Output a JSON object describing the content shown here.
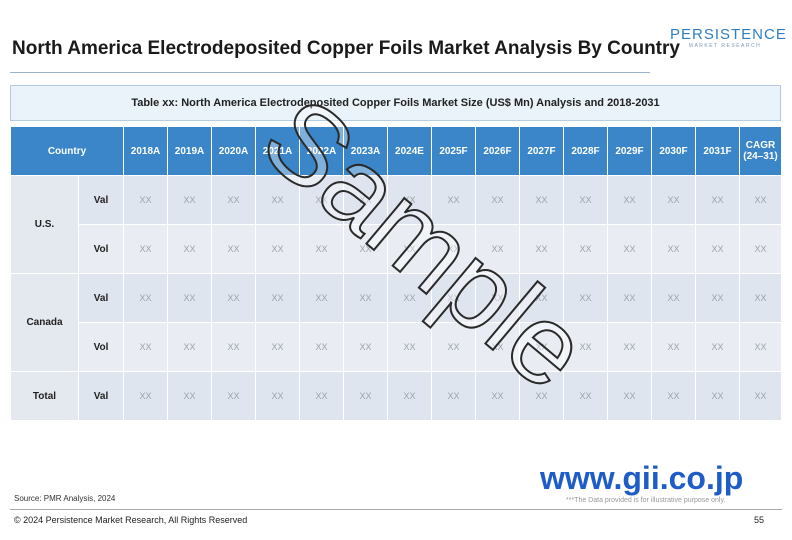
{
  "header": {
    "title": "North America Electrodeposited Copper Foils Market Analysis By Country",
    "logo": {
      "name": "PERSISTENCE",
      "tagline": "MARKET RESEARCH"
    }
  },
  "table": {
    "caption": "Table xx: North America Electrodeposited Copper Foils Market Size (US$ Mn) Analysis and 2018-2031",
    "columns": [
      "Country",
      "2018A",
      "2019A",
      "2020A",
      "2021A",
      "2022A",
      "2023A",
      "2024E",
      "2025F",
      "2026F",
      "2027F",
      "2028F",
      "2029F",
      "2030F",
      "2031F",
      "CAGR (24–31)"
    ],
    "groups": [
      {
        "country": "U.S.",
        "rows": [
          {
            "metric": "Val",
            "values": [
              "XX",
              "XX",
              "XX",
              "XX",
              "XX",
              "XX",
              "XX",
              "XX",
              "XX",
              "XX",
              "XX",
              "XX",
              "XX",
              "XX",
              "XX"
            ]
          },
          {
            "metric": "Vol",
            "values": [
              "XX",
              "XX",
              "XX",
              "XX",
              "XX",
              "XX",
              "XX",
              "XX",
              "XX",
              "XX",
              "XX",
              "XX",
              "XX",
              "XX",
              "XX"
            ]
          }
        ]
      },
      {
        "country": "Canada",
        "rows": [
          {
            "metric": "Val",
            "values": [
              "XX",
              "XX",
              "XX",
              "XX",
              "XX",
              "XX",
              "XX",
              "XX",
              "XX",
              "XX",
              "XX",
              "XX",
              "XX",
              "XX",
              "XX"
            ]
          },
          {
            "metric": "Vol",
            "values": [
              "XX",
              "XX",
              "XX",
              "XX",
              "XX",
              "XX",
              "XX",
              "XX",
              "XX",
              "XX",
              "XX",
              "XX",
              "XX",
              "XX",
              "XX"
            ]
          }
        ]
      },
      {
        "country": "Total",
        "rows": [
          {
            "metric": "Val",
            "values": [
              "XX",
              "XX",
              "XX",
              "XX",
              "XX",
              "XX",
              "XX",
              "XX",
              "XX",
              "XX",
              "XX",
              "XX",
              "XX",
              "XX",
              "XX"
            ]
          }
        ]
      }
    ]
  },
  "watermark": "Sample",
  "site": "www.gii.co.jp",
  "source": "Source: PMR Analysis, 2024",
  "disclaimer": "***The Data provided is for illustrative purpose only.",
  "footer": {
    "copyright": "© 2024 Persistence Market Research, All Rights Reserved",
    "page": "55"
  }
}
